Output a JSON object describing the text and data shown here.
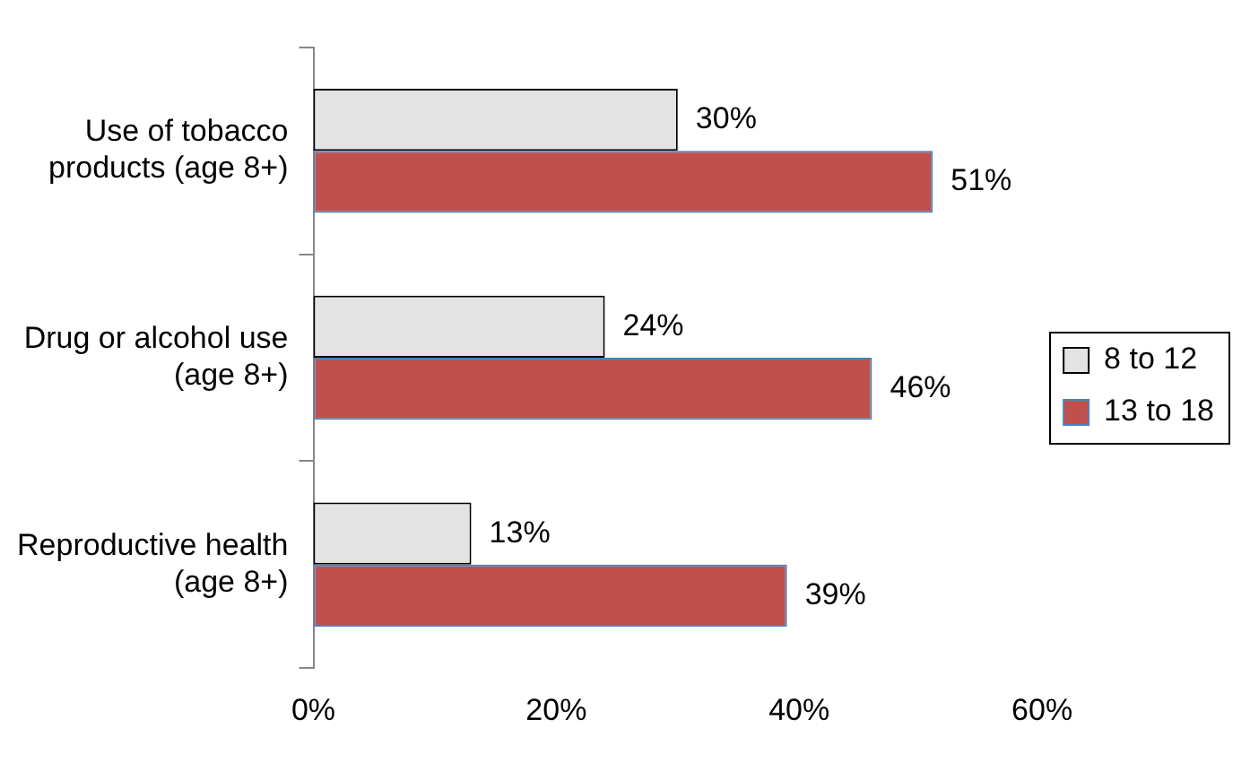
{
  "chart_data": {
    "type": "bar",
    "orientation": "horizontal",
    "categories": [
      "Use of tobacco products (age 8+)",
      "Drug or alcohol use (age 8+)",
      "Reproductive health (age 8+)"
    ],
    "series": [
      {
        "name": "8 to 12",
        "color": "#e3e3e3",
        "values": [
          30,
          24,
          13
        ],
        "value_labels": [
          "30%",
          "24%",
          "13%"
        ]
      },
      {
        "name": "13 to 18",
        "color": "#c0504d",
        "values": [
          51,
          46,
          39
        ],
        "value_labels": [
          "51%",
          "46%",
          "39%"
        ]
      }
    ],
    "xlim": [
      0,
      60
    ],
    "xticks": [
      {
        "value": 0,
        "label": "0%"
      },
      {
        "value": 20,
        "label": "20%"
      },
      {
        "value": 40,
        "label": "40%"
      },
      {
        "value": 60,
        "label": "60%"
      }
    ],
    "grid": false,
    "legend": "right"
  }
}
